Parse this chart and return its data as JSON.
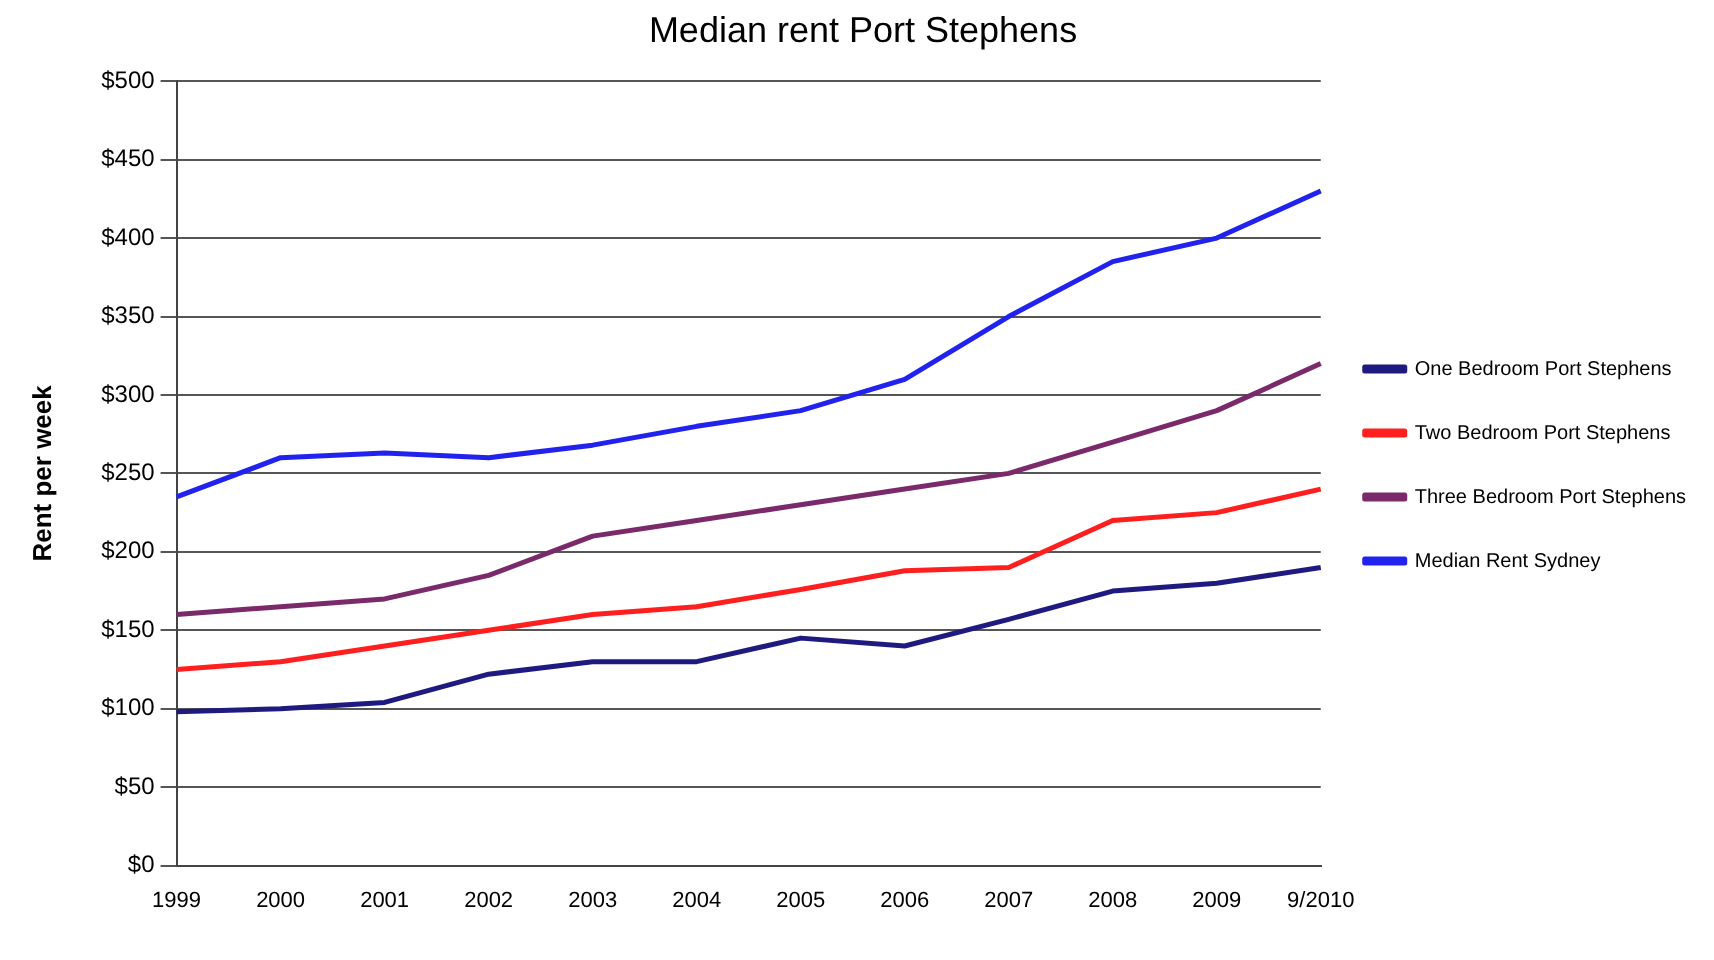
{
  "chart_data": {
    "type": "line",
    "title": "Median rent Port Stephens",
    "ylabel": "Rent per week",
    "categories": [
      "1999",
      "2000",
      "2001",
      "2002",
      "2003",
      "2004",
      "2005",
      "2006",
      "2007",
      "2008",
      "2009",
      "9/2010"
    ],
    "series": [
      {
        "name": "One Bedroom Port Stephens",
        "color": "#1f1a80",
        "values": [
          98,
          100,
          104,
          122,
          130,
          130,
          145,
          140,
          157,
          175,
          180,
          190
        ]
      },
      {
        "name": "Two Bedroom Port Stephens",
        "color": "#ff1f1f",
        "values": [
          125,
          130,
          140,
          150,
          160,
          165,
          176,
          188,
          190,
          220,
          225,
          240
        ]
      },
      {
        "name": "Three Bedroom Port Stephens",
        "color": "#7a2a6a",
        "values": [
          160,
          165,
          170,
          185,
          210,
          220,
          230,
          240,
          250,
          270,
          290,
          320
        ]
      },
      {
        "name": "Median Rent Sydney",
        "color": "#2222ee",
        "values": [
          235,
          260,
          263,
          260,
          268,
          280,
          290,
          310,
          350,
          385,
          400,
          430
        ]
      }
    ],
    "ylim": [
      0,
      500
    ],
    "yticks": [
      {
        "value": 0,
        "label": "$0"
      },
      {
        "value": 50,
        "label": "$50"
      },
      {
        "value": 100,
        "label": "$100"
      },
      {
        "value": 150,
        "label": "$150"
      },
      {
        "value": 200,
        "label": "$200"
      },
      {
        "value": 250,
        "label": "$250"
      },
      {
        "value": 300,
        "label": "$300"
      },
      {
        "value": 350,
        "label": "$350"
      },
      {
        "value": 400,
        "label": "$400"
      },
      {
        "value": 450,
        "label": "$450"
      },
      {
        "value": 500,
        "label": "$500"
      }
    ],
    "grid": "y",
    "legend": "right",
    "marker": "none",
    "line_style": "solid"
  }
}
